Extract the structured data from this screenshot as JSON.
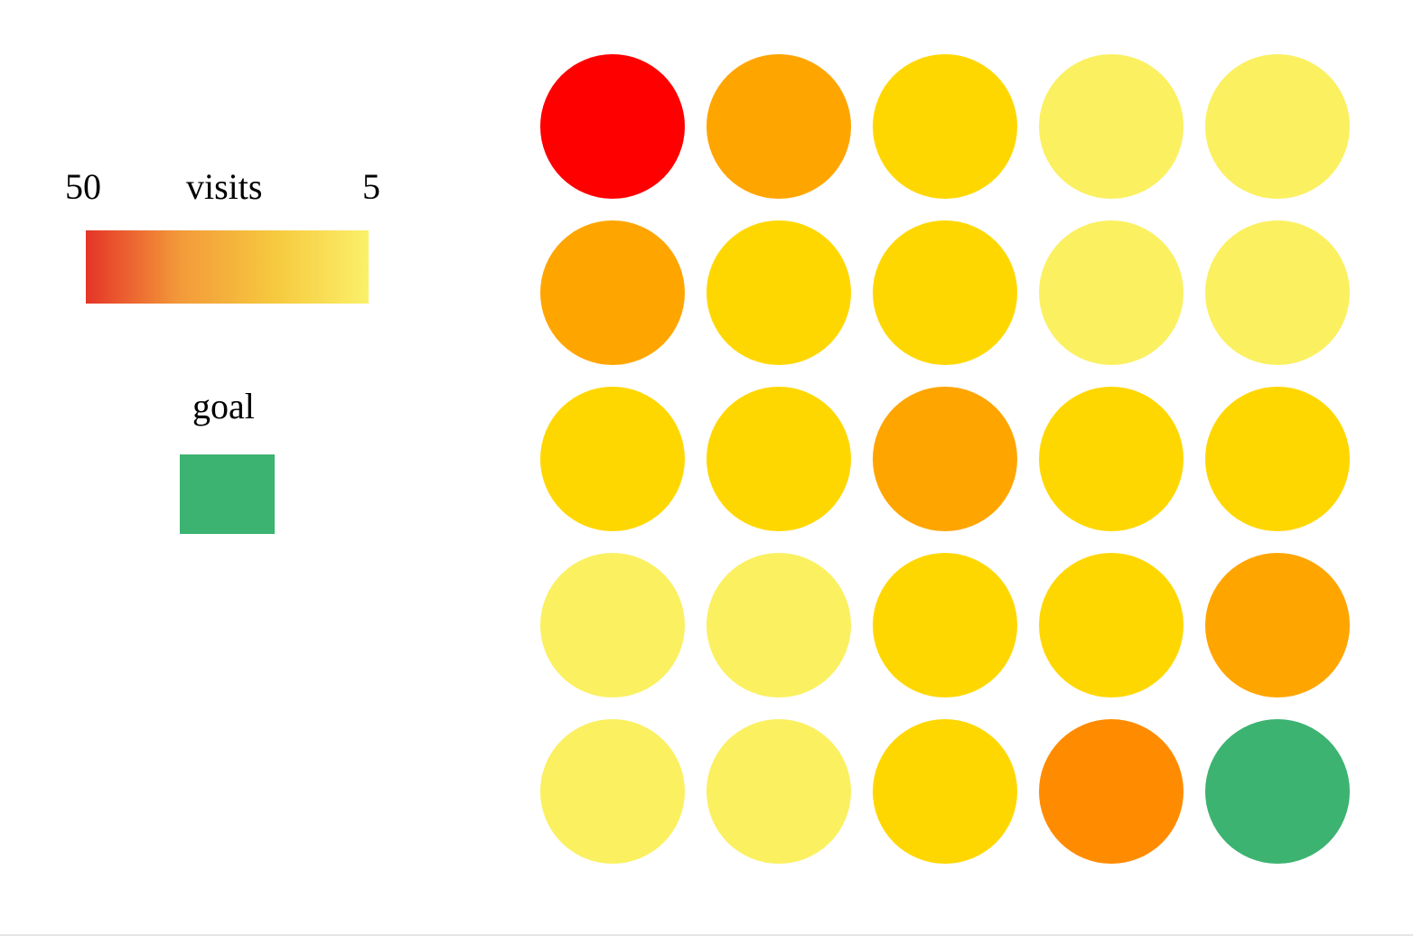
{
  "legend": {
    "min_label": "50",
    "title": "visits",
    "max_label": "5",
    "gradient_colors": [
      "#e53428",
      "#f39a3a",
      "#f6c93e",
      "#fbf06a"
    ],
    "goal_label": "goal",
    "goal_color": "#3cb371"
  },
  "grid": {
    "rows": 5,
    "cols": 5,
    "colors": [
      [
        "#ff0000",
        "#ffa500",
        "#ffd700",
        "#fbf060",
        "#fbf060"
      ],
      [
        "#ffa500",
        "#ffd700",
        "#ffd700",
        "#fbf060",
        "#fbf060"
      ],
      [
        "#ffd700",
        "#ffd700",
        "#ffa500",
        "#ffd700",
        "#ffd700"
      ],
      [
        "#fbf060",
        "#fbf060",
        "#ffd700",
        "#ffd700",
        "#ffa500"
      ],
      [
        "#fbf060",
        "#fbf060",
        "#ffd700",
        "#ff8c00",
        "#3cb371"
      ]
    ]
  }
}
